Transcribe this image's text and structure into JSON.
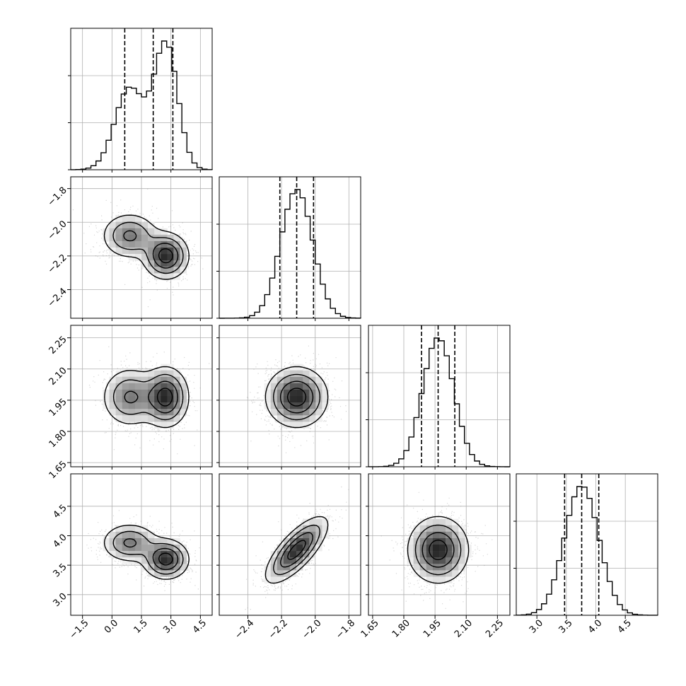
{
  "chart_data": {
    "type": "corner",
    "description_note": "",
    "params": [
      {
        "key": "p0",
        "range": [
          -2.1,
          5.1
        ],
        "ticks": [
          "−1.5",
          "0.0",
          "1.5",
          "3.0",
          "4.5"
        ],
        "tick_values": [
          -1.5,
          0.0,
          1.5,
          3.0,
          4.5
        ],
        "quantiles": [
          0.65,
          2.1,
          3.1
        ],
        "modes": [
          {
            "mu": 0.9,
            "sigma": 0.75,
            "weight": 0.45
          },
          {
            "mu": 2.75,
            "sigma": 0.6,
            "weight": 0.55
          }
        ]
      },
      {
        "key": "p1",
        "range": [
          -2.57,
          -1.73
        ],
        "ticks": [
          "−2.4",
          "−2.2",
          "−2.0",
          "−1.8"
        ],
        "tick_values": [
          -2.4,
          -2.2,
          -2.0,
          -1.8
        ],
        "quantiles": [
          -2.21,
          -2.11,
          -2.01
        ],
        "modes": [
          {
            "mu": -2.11,
            "sigma": 0.095,
            "weight": 1.0
          }
        ]
      },
      {
        "key": "p2",
        "range": [
          1.63,
          2.31
        ],
        "ticks": [
          "1.65",
          "1.80",
          "1.95",
          "2.10",
          "2.25"
        ],
        "tick_values": [
          1.65,
          1.8,
          1.95,
          2.1,
          2.25
        ],
        "quantiles": [
          1.885,
          1.965,
          2.045
        ],
        "modes": [
          {
            "mu": 1.965,
            "sigma": 0.075,
            "weight": 1.0
          }
        ]
      },
      {
        "key": "p3",
        "range": [
          2.65,
          5.05
        ],
        "ticks": [
          "3.0",
          "3.5",
          "4.0",
          "4.5"
        ],
        "tick_values": [
          3.0,
          3.5,
          4.0,
          4.5
        ],
        "quantiles": [
          3.47,
          3.76,
          4.05
        ],
        "modes": [
          {
            "mu": 3.76,
            "sigma": 0.29,
            "weight": 1.0
          }
        ]
      }
    ],
    "joint_means": {
      "p0p1": [
        [
          0.9,
          -2.08
        ],
        [
          2.75,
          -2.2
        ]
      ],
      "p1p3": {
        "rho": 0.75
      },
      "p0p3": [
        [
          0.9,
          3.88
        ],
        [
          2.75,
          3.6
        ]
      ]
    },
    "colors": {
      "line": "#000000",
      "grid": "#b0b0b0",
      "points": "#8c8c8c"
    }
  }
}
